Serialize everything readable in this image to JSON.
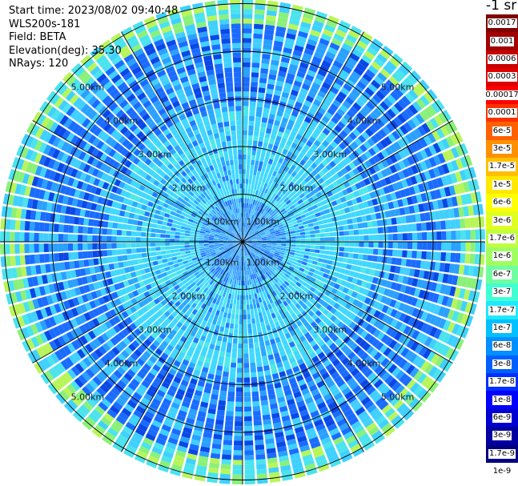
{
  "info": {
    "start_time": "Start time: 2023/08/02 09:40:48",
    "instrument": "WLS200s-181",
    "field": "Field: BETA",
    "elevation": "Elevation(deg): 35.30",
    "nrays": "NRays: 120"
  },
  "unit_label": "-1 sr",
  "colors": {
    "bins": [
      "#800000",
      "#a00000",
      "#c80000",
      "#e00000",
      "#ff0000",
      "#ff3000",
      "#ff6000",
      "#ff9000",
      "#ffc000",
      "#ffe800",
      "#ffff00",
      "#e0ff20",
      "#c0ff40",
      "#a0ff60",
      "#70ffa0",
      "#40ffd0",
      "#20e8ff",
      "#00c0ff",
      "#0090ff",
      "#0060ff",
      "#0030ff",
      "#0000ff",
      "#0000d0",
      "#0000a0",
      "#000080"
    ]
  },
  "chart_data": {
    "type": "polar-ppi",
    "n_rays": 120,
    "range_rings_km": [
      1,
      2,
      3,
      4,
      5
    ],
    "ring_labels": [
      "1.00km",
      "2.00km",
      "3.00km",
      "4.00km",
      "5.00km"
    ],
    "colorbar_labels": [
      "0.0017",
      "0.001",
      "0.0006",
      "0.0003",
      "0.00017",
      "0.0001",
      "6e-5",
      "3e-5",
      "1.7e-5",
      "1e-5",
      "6e-6",
      "3e-6",
      "1.7e-6",
      "1e-6",
      "6e-7",
      "3e-7",
      "1.7e-7",
      "1e-7",
      "6e-8",
      "3e-8",
      "1.7e-8",
      "1e-8",
      "6e-9",
      "3e-9",
      "1.7e-9",
      "1e-9"
    ],
    "spoke_angles_deg": [
      0,
      30,
      60,
      90,
      120,
      150,
      180,
      210,
      240,
      270,
      300,
      330
    ]
  }
}
